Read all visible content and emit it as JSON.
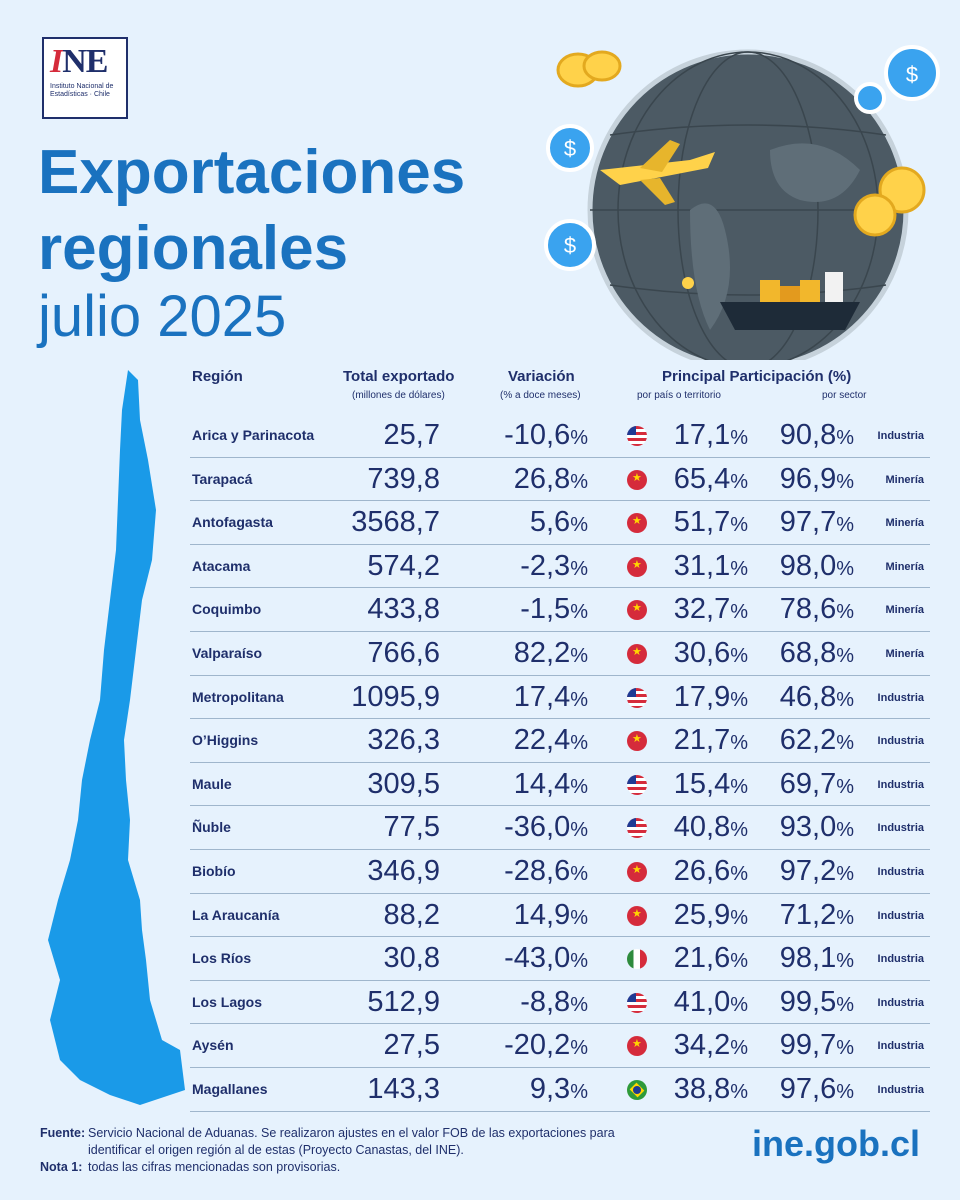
{
  "logo": {
    "mark_i": "I",
    "mark_ne": "NE",
    "line1": "Instituto Nacional de",
    "line2": "Estadísticas · Chile"
  },
  "title": {
    "line1": "Exportaciones",
    "line2": "regionales",
    "line3": "julio 2025"
  },
  "table": {
    "headers": {
      "region": "Región",
      "total": "Total exportado",
      "total_sub": "(millones de dólares)",
      "variacion": "Variación",
      "variacion_sub": "(% a doce meses)",
      "principal": "Principal Participación (%)",
      "pais_sub": "por país o territorio",
      "sector_sub": "por sector"
    },
    "rows": [
      {
        "region": "Arica y Parinacota",
        "total": "25,7",
        "var": "-10,6",
        "flag": "usa-flag",
        "pais": "17,1",
        "sec": "90,8",
        "sector": "Industria"
      },
      {
        "region": "Tarapacá",
        "total": "739,8",
        "var": "26,8",
        "flag": "china-flag",
        "pais": "65,4",
        "sec": "96,9",
        "sector": "Minería"
      },
      {
        "region": "Antofagasta",
        "total": "3568,7",
        "var": "5,6",
        "flag": "china-flag",
        "pais": "51,7",
        "sec": "97,7",
        "sector": "Minería"
      },
      {
        "region": "Atacama",
        "total": "574,2",
        "var": "-2,3",
        "flag": "china-flag",
        "pais": "31,1",
        "sec": "98,0",
        "sector": "Minería"
      },
      {
        "region": "Coquimbo",
        "total": "433,8",
        "var": "-1,5",
        "flag": "china-flag",
        "pais": "32,7",
        "sec": "78,6",
        "sector": "Minería"
      },
      {
        "region": "Valparaíso",
        "total": "766,6",
        "var": "82,2",
        "flag": "china-flag",
        "pais": "30,6",
        "sec": "68,8",
        "sector": "Minería"
      },
      {
        "region": "Metropolitana",
        "total": "1095,9",
        "var": "17,4",
        "flag": "usa-flag",
        "pais": "17,9",
        "sec": "46,8",
        "sector": "Industria"
      },
      {
        "region": "O’Higgins",
        "total": "326,3",
        "var": "22,4",
        "flag": "china-flag",
        "pais": "21,7",
        "sec": "62,2",
        "sector": "Industria"
      },
      {
        "region": "Maule",
        "total": "309,5",
        "var": "14,4",
        "flag": "usa-flag",
        "pais": "15,4",
        "sec": "69,7",
        "sector": "Industria"
      },
      {
        "region": "Ñuble",
        "total": "77,5",
        "var": "-36,0",
        "flag": "usa-flag",
        "pais": "40,8",
        "sec": "93,0",
        "sector": "Industria"
      },
      {
        "region": "Biobío",
        "total": "346,9",
        "var": "-28,6",
        "flag": "china-flag",
        "pais": "26,6",
        "sec": "97,2",
        "sector": "Industria"
      },
      {
        "region": "La Araucanía",
        "total": "88,2",
        "var": "14,9",
        "flag": "china-flag",
        "pais": "25,9",
        "sec": "71,2",
        "sector": "Industria"
      },
      {
        "region": "Los Ríos",
        "total": "30,8",
        "var": "-43,0",
        "flag": "mexico-flag",
        "pais": "21,6",
        "sec": "98,1",
        "sector": "Industria"
      },
      {
        "region": "Los Lagos",
        "total": "512,9",
        "var": "-8,8",
        "flag": "usa-flag",
        "pais": "41,0",
        "sec": "99,5",
        "sector": "Industria"
      },
      {
        "region": "Aysén",
        "total": "27,5",
        "var": "-20,2",
        "flag": "china-flag",
        "pais": "34,2",
        "sec": "99,7",
        "sector": "Industria"
      },
      {
        "region": "Magallanes",
        "total": "143,3",
        "var": "9,3",
        "flag": "brazil-flag",
        "pais": "38,8",
        "sec": "97,6",
        "sector": "Industria"
      }
    ],
    "percent_sign": "%"
  },
  "footer": {
    "fuente_label": "Fuente:",
    "fuente_text1": "Servicio Nacional de Aduanas. Se realizaron ajustes en el valor FOB de las exportaciones para",
    "fuente_text2": "identificar el origen región al de estas (Proyecto Canastas, del INE).",
    "nota_label": "Nota 1:",
    "nota_text": "todas las cifras mencionadas son provisorias.",
    "url": "ine.gob.cl"
  },
  "colors": {
    "background": "#e6f2fd",
    "title": "#1a72bf",
    "text": "#1f2f6b",
    "map": "#1a9ae8"
  }
}
